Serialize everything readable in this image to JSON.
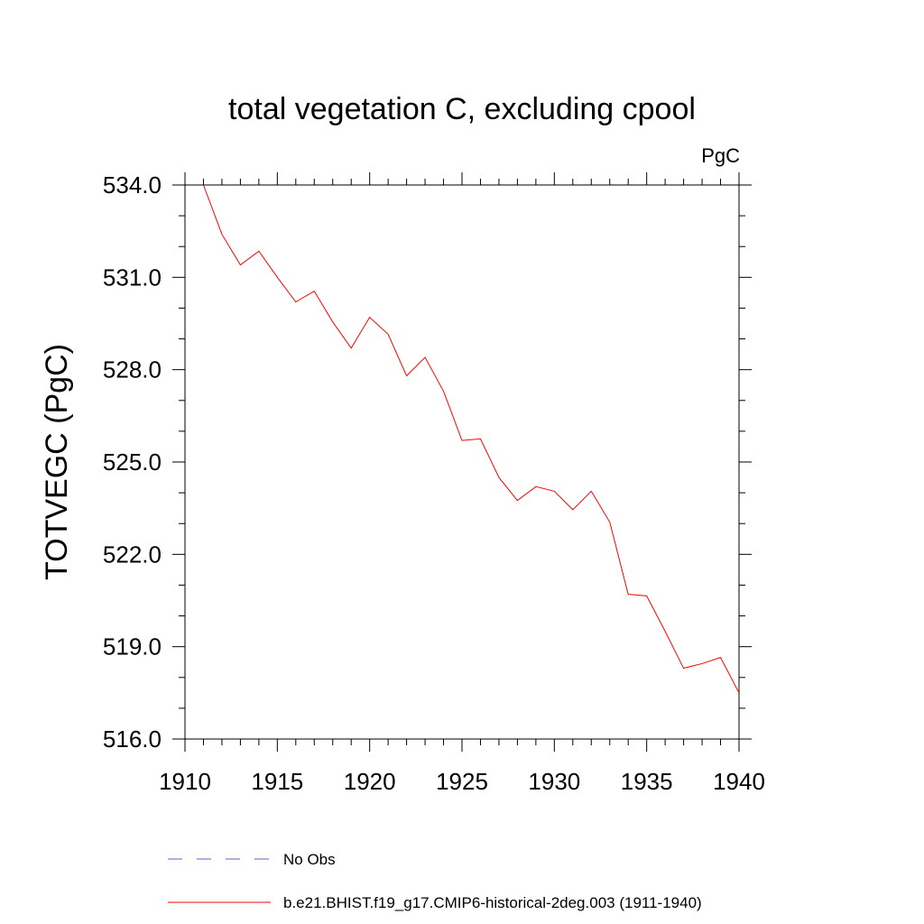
{
  "chart_data": {
    "type": "line",
    "title": "total vegetation C, excluding cpool",
    "units_label": "PgC",
    "ylabel": "TOTVEGC  (PgC)",
    "xlabel": "",
    "xlim": [
      1910,
      1940
    ],
    "ylim": [
      516.0,
      534.0
    ],
    "x_ticks": [
      "1910",
      "1915",
      "1920",
      "1925",
      "1930",
      "1935",
      "1940"
    ],
    "y_ticks": [
      "516.0",
      "519.0",
      "522.0",
      "525.0",
      "528.0",
      "531.0",
      "534.0"
    ],
    "grid": false,
    "legend_position": "bottom",
    "legend": [
      {
        "label": "No Obs",
        "color": "#6a5acd",
        "style": "dashed"
      },
      {
        "label": "b.e21.BHIST.f19_g17.CMIP6-historical-2deg.003 (1911-1940)",
        "color": "#ff0000",
        "style": "solid"
      }
    ],
    "series": [
      {
        "name": "b.e21.BHIST.f19_g17.CMIP6-historical-2deg.003 (1911-1940)",
        "color": "#ff0000",
        "x": [
          1911,
          1912,
          1913,
          1914,
          1915,
          1916,
          1917,
          1918,
          1919,
          1920,
          1921,
          1922,
          1923,
          1924,
          1925,
          1926,
          1927,
          1928,
          1929,
          1930,
          1931,
          1932,
          1933,
          1934,
          1935,
          1936,
          1937,
          1938,
          1939,
          1940
        ],
        "y": [
          534.0,
          532.4,
          531.4,
          531.85,
          531.0,
          530.2,
          530.55,
          529.55,
          528.7,
          529.7,
          529.15,
          527.8,
          528.4,
          527.3,
          525.7,
          525.75,
          524.5,
          523.75,
          524.2,
          524.05,
          523.45,
          524.05,
          523.05,
          520.7,
          520.65,
          519.5,
          518.3,
          518.45,
          518.65,
          517.5
        ]
      }
    ]
  }
}
